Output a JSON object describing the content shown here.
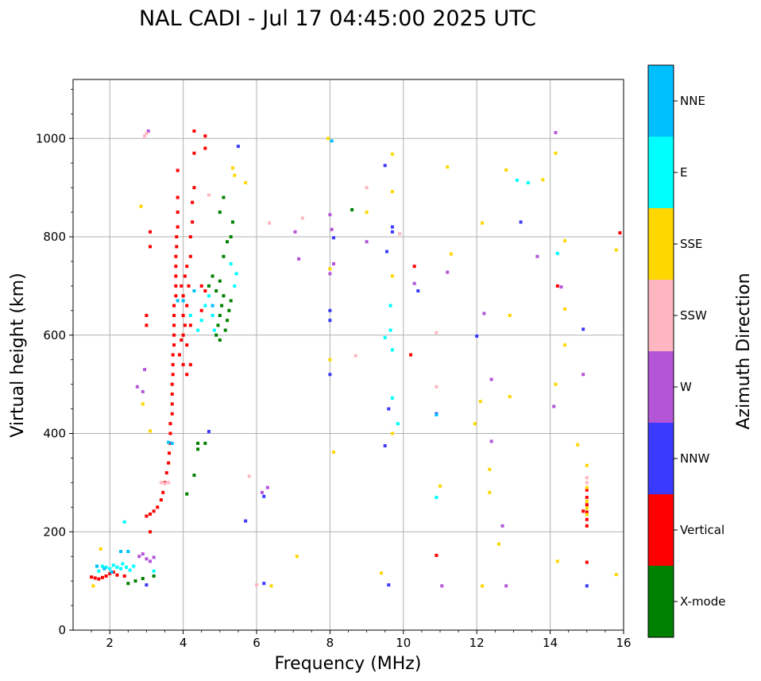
{
  "chart_data": {
    "type": "scatter",
    "title": "NAL CADI - Jul 17 04:45:00 2025 UTC",
    "xlabel": "Frequency (MHz)",
    "ylabel": "Virtual height (km)",
    "xlim": [
      1,
      16
    ],
    "ylim": [
      0,
      1120
    ],
    "xticks": [
      2,
      4,
      6,
      8,
      10,
      12,
      14,
      16
    ],
    "yticks": [
      0,
      200,
      400,
      600,
      800,
      1000
    ],
    "grid": true,
    "colorbar": {
      "label": "Azimuth Direction",
      "categories": [
        {
          "name": "X-mode",
          "color": "#008000"
        },
        {
          "name": "Vertical",
          "color": "#ff0000"
        },
        {
          "name": "NNW",
          "color": "#3a3aff"
        },
        {
          "name": "W",
          "color": "#b455d8"
        },
        {
          "name": "SSW",
          "color": "#ffb6c1"
        },
        {
          "name": "SSE",
          "color": "#ffd700"
        },
        {
          "name": "E",
          "color": "#00ffff"
        },
        {
          "name": "NNE",
          "color": "#00bfff"
        }
      ]
    },
    "series": [
      {
        "name": "Vertical",
        "points": [
          [
            1.5,
            108
          ],
          [
            1.6,
            106
          ],
          [
            1.7,
            104
          ],
          [
            1.8,
            107
          ],
          [
            1.9,
            110
          ],
          [
            2.0,
            115
          ],
          [
            2.1,
            118
          ],
          [
            2.4,
            110
          ],
          [
            2.2,
            112
          ],
          [
            3.0,
            232
          ],
          [
            3.1,
            236
          ],
          [
            3.2,
            242
          ],
          [
            3.3,
            250
          ],
          [
            3.4,
            265
          ],
          [
            3.45,
            280
          ],
          [
            3.5,
            300
          ],
          [
            3.55,
            320
          ],
          [
            3.6,
            340
          ],
          [
            3.62,
            360
          ],
          [
            3.65,
            380
          ],
          [
            3.65,
            400
          ],
          [
            3.65,
            420
          ],
          [
            3.7,
            440
          ],
          [
            3.7,
            460
          ],
          [
            3.7,
            480
          ],
          [
            3.7,
            500
          ],
          [
            3.72,
            520
          ],
          [
            3.72,
            540
          ],
          [
            3.72,
            560
          ],
          [
            3.75,
            580
          ],
          [
            3.75,
            600
          ],
          [
            3.75,
            620
          ],
          [
            3.75,
            640
          ],
          [
            3.75,
            660
          ],
          [
            3.8,
            680
          ],
          [
            3.8,
            700
          ],
          [
            3.8,
            720
          ],
          [
            3.8,
            740
          ],
          [
            3.8,
            760
          ],
          [
            3.82,
            780
          ],
          [
            3.82,
            800
          ],
          [
            3.85,
            820
          ],
          [
            3.85,
            850
          ],
          [
            3.85,
            880
          ],
          [
            3.85,
            935
          ],
          [
            3.9,
            560
          ],
          [
            3.95,
            590
          ],
          [
            4.0,
            600
          ],
          [
            4.05,
            620
          ],
          [
            4.0,
            640
          ],
          [
            4.1,
            580
          ],
          [
            4.1,
            660
          ],
          [
            4.15,
            700
          ],
          [
            4.2,
            540
          ],
          [
            4.2,
            620
          ],
          [
            4.0,
            680
          ],
          [
            3.95,
            700
          ],
          [
            4.05,
            720
          ],
          [
            4.1,
            740
          ],
          [
            4.2,
            760
          ],
          [
            4.2,
            800
          ],
          [
            4.25,
            830
          ],
          [
            4.25,
            870
          ],
          [
            4.3,
            900
          ],
          [
            4.3,
            970
          ],
          [
            4.3,
            1015
          ],
          [
            4.1,
            520
          ],
          [
            4.0,
            540
          ],
          [
            4.5,
            650
          ],
          [
            4.6,
            690
          ],
          [
            4.6,
            980
          ],
          [
            4.6,
            1005
          ],
          [
            4.5,
            700
          ],
          [
            3.0,
            620
          ],
          [
            3.0,
            640
          ],
          [
            3.1,
            780
          ],
          [
            3.1,
            810
          ],
          [
            3.1,
            200
          ],
          [
            10.9,
            152
          ],
          [
            15.0,
            138
          ],
          [
            14.9,
            242
          ],
          [
            10.2,
            560
          ],
          [
            10.3,
            740
          ],
          [
            14.2,
            700
          ],
          [
            15.9,
            808
          ],
          [
            15.0,
            212
          ],
          [
            15.0,
            225
          ],
          [
            15.0,
            240
          ],
          [
            15.0,
            255
          ],
          [
            15.0,
            270
          ],
          [
            15.0,
            285
          ]
        ]
      },
      {
        "name": "X-mode",
        "points": [
          [
            2.5,
            95
          ],
          [
            2.7,
            100
          ],
          [
            2.9,
            105
          ],
          [
            3.2,
            110
          ],
          [
            4.1,
            277
          ],
          [
            4.3,
            315
          ],
          [
            4.4,
            368
          ],
          [
            4.4,
            380
          ],
          [
            4.6,
            380
          ],
          [
            4.7,
            700
          ],
          [
            4.8,
            720
          ],
          [
            4.9,
            600
          ],
          [
            4.95,
            620
          ],
          [
            5.0,
            640
          ],
          [
            5.05,
            660
          ],
          [
            5.1,
            680
          ],
          [
            5.0,
            590
          ],
          [
            5.15,
            610
          ],
          [
            5.2,
            630
          ],
          [
            5.25,
            650
          ],
          [
            5.3,
            670
          ],
          [
            4.9,
            690
          ],
          [
            5.0,
            710
          ],
          [
            5.1,
            760
          ],
          [
            5.2,
            790
          ],
          [
            5.3,
            800
          ],
          [
            5.35,
            830
          ],
          [
            5.0,
            850
          ],
          [
            5.1,
            880
          ],
          [
            8.6,
            855
          ]
        ]
      },
      {
        "name": "NNW",
        "points": [
          [
            3.0,
            92
          ],
          [
            4.7,
            404
          ],
          [
            5.5,
            984
          ],
          [
            5.7,
            222
          ],
          [
            6.2,
            95
          ],
          [
            6.2,
            272
          ],
          [
            8.0,
            650
          ],
          [
            8.0,
            630
          ],
          [
            8.1,
            798
          ],
          [
            9.5,
            945
          ],
          [
            9.55,
            770
          ],
          [
            9.6,
            450
          ],
          [
            9.6,
            92
          ],
          [
            9.7,
            820
          ],
          [
            9.7,
            810
          ],
          [
            10.4,
            690
          ],
          [
            10.9,
            440
          ],
          [
            12.0,
            598
          ],
          [
            13.2,
            830
          ],
          [
            14.9,
            612
          ],
          [
            15.0,
            90
          ],
          [
            9.5,
            375
          ],
          [
            8.0,
            520
          ]
        ]
      },
      {
        "name": "W",
        "points": [
          [
            2.8,
            150
          ],
          [
            2.9,
            155
          ],
          [
            3.0,
            145
          ],
          [
            3.1,
            140
          ],
          [
            3.2,
            148
          ],
          [
            2.75,
            495
          ],
          [
            2.9,
            485
          ],
          [
            2.95,
            530
          ],
          [
            3.05,
            1015
          ],
          [
            6.15,
            280
          ],
          [
            6.3,
            290
          ],
          [
            7.15,
            755
          ],
          [
            7.05,
            810
          ],
          [
            8.0,
            845
          ],
          [
            8.05,
            815
          ],
          [
            8.1,
            745
          ],
          [
            8.0,
            725
          ],
          [
            9.0,
            790
          ],
          [
            10.3,
            705
          ],
          [
            11.05,
            90
          ],
          [
            11.2,
            728
          ],
          [
            12.2,
            644
          ],
          [
            12.4,
            510
          ],
          [
            12.4,
            384
          ],
          [
            12.7,
            212
          ],
          [
            12.8,
            90
          ],
          [
            13.65,
            760
          ],
          [
            14.1,
            455
          ],
          [
            14.15,
            1012
          ],
          [
            14.3,
            698
          ],
          [
            14.9,
            520
          ]
        ]
      },
      {
        "name": "SSW",
        "points": [
          [
            2.95,
            1005
          ],
          [
            3.0,
            1010
          ],
          [
            3.4,
            300
          ],
          [
            3.5,
            298
          ],
          [
            3.6,
            300
          ],
          [
            4.7,
            885
          ],
          [
            5.8,
            313
          ],
          [
            6.35,
            828
          ],
          [
            7.25,
            838
          ],
          [
            8.7,
            558
          ],
          [
            9.0,
            900
          ],
          [
            9.9,
            806
          ],
          [
            10.9,
            495
          ],
          [
            10.9,
            605
          ],
          [
            15.0,
            310
          ],
          [
            15.0,
            300
          ],
          [
            6.0,
            92
          ]
        ]
      },
      {
        "name": "SSE",
        "points": [
          [
            1.55,
            90
          ],
          [
            1.75,
            165
          ],
          [
            2.85,
            862
          ],
          [
            2.9,
            460
          ],
          [
            3.1,
            405
          ],
          [
            5.35,
            940
          ],
          [
            5.4,
            925
          ],
          [
            5.7,
            910
          ],
          [
            6.4,
            90
          ],
          [
            7.1,
            150
          ],
          [
            7.95,
            1000
          ],
          [
            8.0,
            550
          ],
          [
            8.0,
            735
          ],
          [
            8.1,
            362
          ],
          [
            9.0,
            850
          ],
          [
            9.7,
            968
          ],
          [
            9.7,
            892
          ],
          [
            9.7,
            720
          ],
          [
            9.7,
            400
          ],
          [
            11.0,
            293
          ],
          [
            11.2,
            942
          ],
          [
            11.3,
            765
          ],
          [
            11.95,
            420
          ],
          [
            12.15,
            828
          ],
          [
            12.1,
            465
          ],
          [
            12.15,
            90
          ],
          [
            12.35,
            327
          ],
          [
            12.35,
            280
          ],
          [
            12.6,
            175
          ],
          [
            12.8,
            936
          ],
          [
            12.9,
            640
          ],
          [
            12.9,
            475
          ],
          [
            13.8,
            916
          ],
          [
            14.15,
            970
          ],
          [
            14.15,
            500
          ],
          [
            14.2,
            140
          ],
          [
            14.4,
            792
          ],
          [
            14.4,
            653
          ],
          [
            14.4,
            580
          ],
          [
            14.75,
            377
          ],
          [
            15.0,
            335
          ],
          [
            15.0,
            290
          ],
          [
            15.0,
            262
          ],
          [
            15.0,
            248
          ],
          [
            15.0,
            235
          ],
          [
            15.8,
            773
          ],
          [
            15.8,
            113
          ],
          [
            9.4,
            116
          ]
        ]
      },
      {
        "name": "E",
        "points": [
          [
            1.7,
            120
          ],
          [
            1.8,
            130
          ],
          [
            1.9,
            128
          ],
          [
            2.0,
            125
          ],
          [
            2.1,
            132
          ],
          [
            2.2,
            128
          ],
          [
            2.3,
            125
          ],
          [
            2.35,
            135
          ],
          [
            2.45,
            128
          ],
          [
            2.55,
            122
          ],
          [
            2.65,
            130
          ],
          [
            3.2,
            120
          ],
          [
            2.4,
            220
          ],
          [
            4.2,
            640
          ],
          [
            4.4,
            610
          ],
          [
            4.5,
            630
          ],
          [
            4.6,
            660
          ],
          [
            4.7,
            680
          ],
          [
            4.8,
            640
          ],
          [
            4.85,
            610
          ],
          [
            5.4,
            700
          ],
          [
            5.45,
            725
          ],
          [
            5.3,
            745
          ],
          [
            9.5,
            595
          ],
          [
            9.65,
            610
          ],
          [
            9.65,
            660
          ],
          [
            9.7,
            472
          ],
          [
            9.85,
            420
          ],
          [
            10.9,
            270
          ],
          [
            13.1,
            915
          ],
          [
            13.4,
            910
          ],
          [
            14.2,
            766
          ],
          [
            9.7,
            570
          ]
        ]
      },
      {
        "name": "NNE",
        "points": [
          [
            1.65,
            130
          ],
          [
            1.85,
            125
          ],
          [
            2.05,
            118
          ],
          [
            2.3,
            160
          ],
          [
            2.5,
            160
          ],
          [
            3.6,
            382
          ],
          [
            3.7,
            380
          ],
          [
            3.85,
            670
          ],
          [
            4.0,
            670
          ],
          [
            4.3,
            690
          ],
          [
            4.8,
            660
          ],
          [
            8.05,
            995
          ],
          [
            10.9,
            438
          ]
        ]
      }
    ]
  }
}
